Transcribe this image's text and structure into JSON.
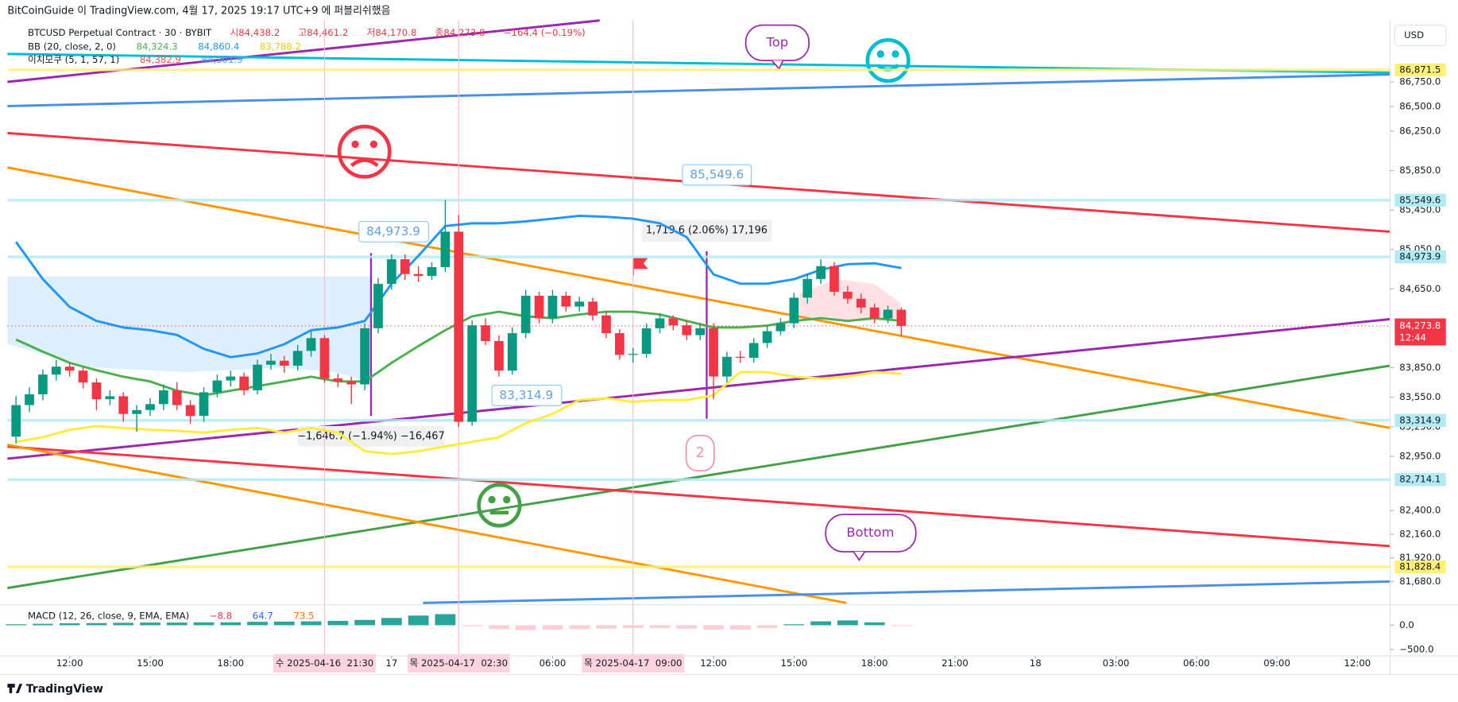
{
  "chart_data": {
    "type": "candlestick",
    "header": "BitCoinGuide 이 TradingView.com, 4월 17, 2025 19:17 UTC+9 에 퍼블리쉬했음",
    "footer": "TradingView",
    "currency": "USD",
    "legend": {
      "symbol": "BTCUSD Perpetual Contract · 30 · BYBIT",
      "open": "시84,438.2",
      "high": "고84,461.2",
      "low": "저84,170.8",
      "close": "종84,273.8",
      "change": "−164.4 (−0.19%)",
      "bb": "BB (20, close, 2, 0)",
      "bb_middle": "84,324.3",
      "bb_upper": "84,860.4",
      "bb_lower": "83,788.2",
      "ichimoku": "이치모쿠 (5, 1, 57, 1)",
      "ichimoku_a": "84,382.9",
      "ichimoku_b": "84,301.9"
    },
    "xlim": [
      9.68,
      61.22
    ],
    "xticks": [
      {
        "value": 12,
        "label": "12:00"
      },
      {
        "value": 15,
        "label": "15:00"
      },
      {
        "value": 18,
        "label": "18:00"
      },
      {
        "value": 21.5,
        "label": "수 2025-04-16  21:30",
        "highlight": true
      },
      {
        "value": 24,
        "label": "17"
      },
      {
        "value": 26.5,
        "label": "목 2025-04-17  02:30",
        "highlight": true
      },
      {
        "value": 30,
        "label": "06:00"
      },
      {
        "value": 33,
        "label": "목 2025-04-17  09:00",
        "highlight": true
      },
      {
        "value": 36,
        "label": "12:00"
      },
      {
        "value": 39,
        "label": "15:00"
      },
      {
        "value": 42,
        "label": "18:00"
      },
      {
        "value": 45,
        "label": "21:00"
      },
      {
        "value": 48,
        "label": "18"
      },
      {
        "value": 51,
        "label": "03:00"
      },
      {
        "value": 54,
        "label": "06:00"
      },
      {
        "value": 57,
        "label": "09:00"
      },
      {
        "value": 60,
        "label": "12:00"
      }
    ],
    "ylim": [
      81444,
      87373
    ],
    "yticks": [
      {
        "value": 86750,
        "label": "86,750.0"
      },
      {
        "value": 86500,
        "label": "86,500.0"
      },
      {
        "value": 86250,
        "label": "86,250.0"
      },
      {
        "value": 85850,
        "label": "85,850.0"
      },
      {
        "value": 85450,
        "label": "85,450.0"
      },
      {
        "value": 85050,
        "label": "85,050.0"
      },
      {
        "value": 84650,
        "label": "84,650.0"
      },
      {
        "value": 83850,
        "label": "83,850.0"
      },
      {
        "value": 83550,
        "label": "83,550.0"
      },
      {
        "value": 83250,
        "label": "83,250.0"
      },
      {
        "value": 82950,
        "label": "82,950.0"
      },
      {
        "value": 82400,
        "label": "82,400.0"
      },
      {
        "value": 82160,
        "label": "82,160.0"
      },
      {
        "value": 81920,
        "label": "81,920.0"
      },
      {
        "value": 81680,
        "label": "81,680.0"
      }
    ],
    "candles": {
      "up_color": "#089981",
      "down_color": "#f23645",
      "x": [
        10,
        10.5,
        11,
        11.5,
        12,
        12.5,
        13,
        13.5,
        14,
        14.5,
        15,
        15.5,
        16,
        16.5,
        17,
        17.5,
        18,
        18.5,
        19,
        19.5,
        20,
        20.5,
        21,
        21.5,
        22,
        22.5,
        23,
        23.5,
        24,
        24.5,
        25,
        25.5,
        26,
        26.5,
        27,
        27.5,
        28,
        28.5,
        29,
        29.5,
        30,
        30.5,
        31,
        31.5,
        32,
        32.5,
        33,
        33.5,
        34,
        34.5,
        35,
        35.5,
        36,
        36.5,
        37,
        37.5,
        38,
        38.5,
        39,
        39.5,
        40,
        40.5,
        41,
        41.5,
        42,
        42.5,
        43
      ],
      "open": [
        83150,
        83470,
        83580,
        83780,
        83860,
        83820,
        83700,
        83530,
        83560,
        83380,
        83420,
        83480,
        83620,
        83470,
        83360,
        83600,
        83720,
        83760,
        83620,
        83880,
        83920,
        83870,
        84020,
        84150,
        83740,
        83710,
        83680,
        84250,
        84700,
        84950,
        84800,
        84780,
        84870,
        85230,
        83300,
        84280,
        84120,
        83820,
        84200,
        84580,
        84350,
        84580,
        84470,
        84520,
        84380,
        84200,
        83980,
        83990,
        84250,
        84350,
        84280,
        84180,
        84250,
        83760,
        83960,
        83950,
        84100,
        84220,
        84300,
        84560,
        84750,
        84880,
        84620,
        84550,
        84460,
        84350,
        84438.2
      ],
      "high": [
        83560,
        83650,
        83830,
        83930,
        83900,
        83850,
        83740,
        83620,
        83600,
        83470,
        83540,
        83680,
        83700,
        83520,
        83650,
        83780,
        83820,
        83800,
        83930,
        83990,
        83970,
        84080,
        84220,
        84180,
        83790,
        83760,
        84300,
        84760,
        85000,
        85000,
        84880,
        84920,
        85550,
        85400,
        84330,
        84350,
        84180,
        84260,
        84640,
        84620,
        84640,
        84620,
        84570,
        84560,
        84420,
        84240,
        84050,
        84300,
        84400,
        84380,
        84330,
        84300,
        84300,
        84010,
        84020,
        84150,
        84270,
        84350,
        84610,
        84800,
        84950,
        84920,
        84680,
        84600,
        84500,
        84480,
        84461.2
      ],
      "low": [
        83080,
        83400,
        83520,
        83720,
        83760,
        83640,
        83420,
        83470,
        83300,
        83200,
        83360,
        83420,
        83420,
        83280,
        83300,
        83550,
        83660,
        83570,
        83580,
        83830,
        83800,
        83820,
        83960,
        83700,
        83650,
        83480,
        83620,
        84200,
        84640,
        84740,
        84720,
        84740,
        84820,
        83250,
        83260,
        84080,
        83760,
        83780,
        84150,
        84300,
        84300,
        84420,
        84420,
        84330,
        84150,
        83930,
        83900,
        83950,
        84200,
        84230,
        84130,
        84130,
        83530,
        83700,
        83900,
        83900,
        84050,
        84180,
        84250,
        84500,
        84700,
        84580,
        84500,
        84400,
        84300,
        84300,
        84170.8
      ],
      "close": [
        83470,
        83580,
        83780,
        83860,
        83820,
        83700,
        83530,
        83560,
        83380,
        83420,
        83480,
        83620,
        83470,
        83360,
        83600,
        83720,
        83760,
        83620,
        83880,
        83920,
        83870,
        84020,
        84150,
        83740,
        83710,
        83680,
        84250,
        84700,
        84950,
        84800,
        84780,
        84870,
        85230,
        83300,
        84280,
        84120,
        83820,
        84200,
        84580,
        84350,
        84580,
        84470,
        84520,
        84380,
        84200,
        83980,
        83990,
        84250,
        84350,
        84280,
        84180,
        84250,
        83760,
        83960,
        83950,
        84100,
        84220,
        84300,
        84560,
        84750,
        84880,
        84620,
        84550,
        84460,
        84350,
        84438.2,
        84273.8
      ]
    },
    "indicators": {
      "x": [
        10,
        11,
        12,
        13,
        14,
        15,
        16,
        17,
        18,
        19,
        20,
        21,
        22,
        23,
        24,
        25,
        26,
        27,
        28,
        29,
        30,
        31,
        32,
        33,
        34,
        35,
        36,
        37,
        38,
        39,
        40,
        41,
        42,
        43
      ],
      "series": [
        {
          "color": "#2196f3",
          "values": [
            85126,
            84748,
            84466,
            84324,
            84258,
            84230,
            84182,
            84041,
            83956,
            83994,
            84088,
            84230,
            84258,
            84324,
            84702,
            84985,
            85287,
            85315,
            85315,
            85334,
            85362,
            85391,
            85381,
            85362,
            85315,
            85174,
            84796,
            84702,
            84702,
            84748,
            84843,
            84900,
            84909,
            84860.4
          ]
        },
        {
          "color": "#4caf50",
          "values": [
            84135,
            84012,
            83899,
            83824,
            83758,
            83710,
            83616,
            83569,
            83616,
            83663,
            83710,
            83758,
            83710,
            83710,
            83899,
            84069,
            84230,
            84371,
            84418,
            84371,
            84352,
            84390,
            84418,
            84418,
            84390,
            84324,
            84258,
            84258,
            84277,
            84324,
            84352,
            84324,
            84352,
            84324.3
          ]
        },
        {
          "color": "#ffeb3b",
          "values": [
            83097,
            83144,
            83219,
            83257,
            83238,
            83219,
            83210,
            83191,
            83219,
            83238,
            83191,
            83238,
            83191,
            83002,
            82974,
            83002,
            83050,
            83097,
            83144,
            83286,
            83380,
            83522,
            83540,
            83503,
            83522,
            83522,
            83569,
            83805,
            83805,
            83758,
            83739,
            83758,
            83805,
            83788.2
          ]
        }
      ]
    },
    "levels": [
      {
        "value": 86871.5,
        "label": "86,871.5",
        "color": "#fff176"
      },
      {
        "value": 85549.6,
        "label": "85,549.6",
        "color": "#b2ebf2"
      },
      {
        "value": 84973.9,
        "label": "84,973.9",
        "color": "#b2ebf2"
      },
      {
        "value": 83314.9,
        "label": "83,314.9",
        "color": "#b2ebf2"
      },
      {
        "value": 82714.1,
        "label": "82,714.1",
        "color": "#b2ebf2"
      },
      {
        "value": 81828.4,
        "label": "81,828.4",
        "color": "#fff176"
      }
    ],
    "last_price": {
      "label": "84,273.8",
      "countdown": "12:44",
      "color": "#f23645"
    },
    "macd": {
      "legend": "MACD (12, 26, close, 9, EMA, EMA)",
      "histogram_label": "−8.8",
      "macd_label": "64.7",
      "signal_label": "73.5",
      "ylim": [
        -635,
        385
      ],
      "yticks": [
        {
          "value": 0,
          "label": "0.0"
        },
        {
          "value": -500,
          "label": "−500.0"
        }
      ],
      "up_color": "#26a69a",
      "down_color": "#ffcdd2",
      "x": [
        10,
        11,
        12,
        13,
        14,
        15,
        16,
        17,
        18,
        19,
        20,
        21,
        22,
        23,
        24,
        25,
        26,
        27,
        28,
        29,
        30,
        31,
        32,
        33,
        34,
        35,
        36,
        37,
        38,
        39,
        40,
        41,
        42,
        43
      ],
      "values": [
        20,
        30,
        40,
        45,
        50,
        55,
        55,
        60,
        60,
        70,
        75,
        80,
        90,
        110,
        150,
        200,
        230,
        -20,
        -80,
        -100,
        -90,
        -80,
        -70,
        -60,
        -60,
        -70,
        -90,
        -90,
        -60,
        20,
        80,
        100,
        60,
        -8.8
      ]
    },
    "annotations": {
      "top": "Top",
      "bottom": "Bottom",
      "callout_a": "84,973.9",
      "callout_b": "85,549.6",
      "callout_c": "83,314.9",
      "measure_up": "1,719.6 (2.06%) 17,196",
      "measure_down": "−1,646.7 (−1.94%) −16,467",
      "marker": "2"
    }
  }
}
